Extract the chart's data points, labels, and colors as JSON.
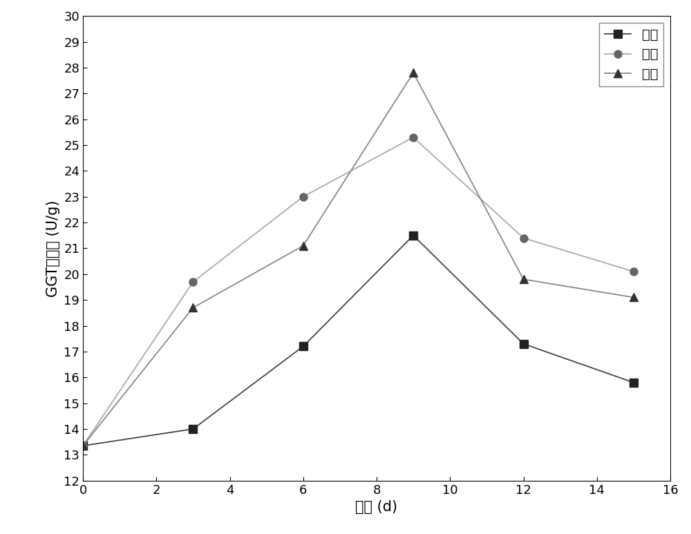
{
  "x": [
    0,
    3,
    6,
    9,
    12,
    15
  ],
  "series": [
    {
      "label": "纳米",
      "y": [
        13.35,
        14.0,
        17.2,
        21.5,
        17.3,
        15.8
      ],
      "line_color": "#444444",
      "marker_color": "#222222",
      "marker": "s",
      "markersize": 8
    },
    {
      "label": "普通",
      "y": [
        13.35,
        19.7,
        23.0,
        25.3,
        21.4,
        20.1
      ],
      "line_color": "#aaaaaa",
      "marker_color": "#666666",
      "marker": "o",
      "markersize": 8
    },
    {
      "label": "开口",
      "y": [
        13.35,
        18.7,
        21.1,
        27.8,
        19.8,
        19.1
      ],
      "line_color": "#888888",
      "marker_color": "#333333",
      "marker": "^",
      "markersize": 8
    }
  ],
  "xlabel": "时间 (d)",
  "ylabel": "GGT比活力 (U/g)",
  "xlim": [
    0,
    16
  ],
  "ylim": [
    12,
    30
  ],
  "xticks": [
    0,
    2,
    4,
    6,
    8,
    10,
    12,
    14,
    16
  ],
  "yticks": [
    12,
    13,
    14,
    15,
    16,
    17,
    18,
    19,
    20,
    21,
    22,
    23,
    24,
    25,
    26,
    27,
    28,
    29,
    30
  ],
  "legend_loc": "upper right",
  "background_color": "#ffffff",
  "linewidth": 1.3,
  "fontsize_labels": 15,
  "fontsize_ticks": 13,
  "fontsize_legend": 14
}
